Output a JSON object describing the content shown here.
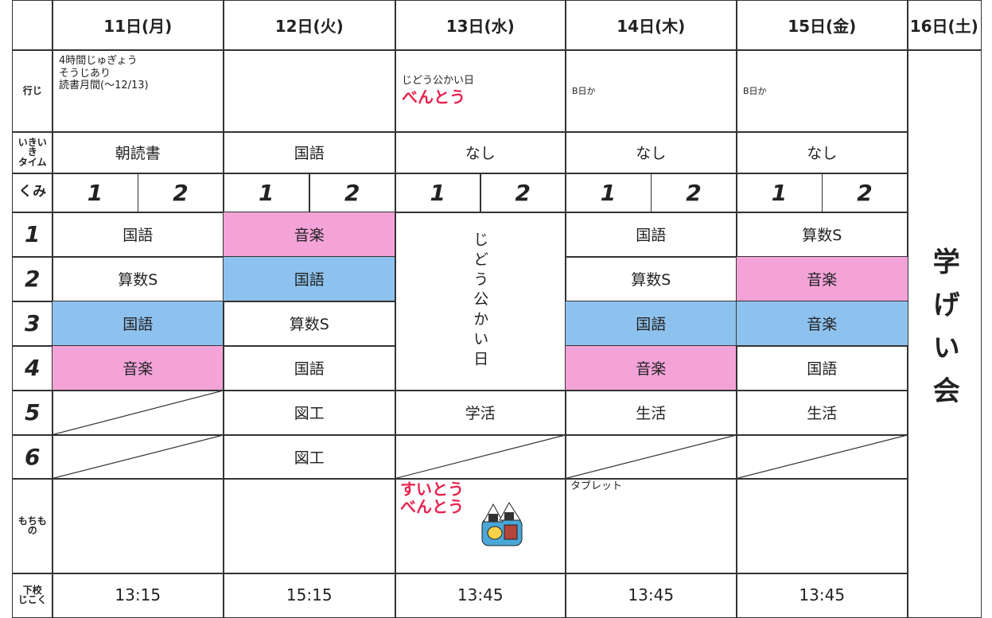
{
  "header": {
    "days": [
      "11日(月)",
      "12日(火)",
      "13日(水)",
      "14日(木)",
      "15日(金)",
      "16日(土)"
    ]
  },
  "row_labels": {
    "events": "行じ",
    "ikiiki": [
      "いきい",
      "き",
      "タイム"
    ],
    "class": "くみ",
    "periods": [
      "1",
      "2",
      "3",
      "4",
      "5",
      "6"
    ],
    "belongings": [
      "もちも",
      "の"
    ],
    "dismissal": [
      "下校",
      "じこく"
    ]
  },
  "class_labels": [
    "1",
    "2"
  ],
  "events": [
    {
      "lines": [
        "4時間じゅぎょう",
        "そうじあり",
        "読書月間(〜12/13)"
      ]
    },
    null,
    {
      "lines": [
        "じどう公かい日"
      ],
      "red": "べんとう"
    },
    {
      "lines": [
        "B日か"
      ]
    },
    {
      "lines": [
        "B日か"
      ]
    }
  ],
  "ikiiki": [
    "朝読書",
    "国語",
    "なし",
    "なし",
    "なし"
  ],
  "schedule": [
    [
      {
        "text": "国語"
      },
      {
        "text": "算数S"
      },
      {
        "text": "国語",
        "color": "#8ec2ee"
      },
      {
        "text": "音楽",
        "color": "#f3a3d8"
      },
      null,
      null
    ],
    [
      {
        "text": "音楽",
        "color": "#f3a3d8"
      },
      {
        "text": "国語",
        "color": "#8ec2ee"
      },
      {
        "text": "算数S"
      },
      {
        "text": "国語"
      },
      {
        "text": "図工"
      },
      {
        "text": "図工"
      }
    ],
    [
      {
        "text": "じどう公かい日",
        "span": 4,
        "vertical": true
      },
      {
        "text": "学活"
      },
      null
    ],
    [
      {
        "text": "国語"
      },
      {
        "text": "算数S"
      },
      {
        "text": "国語",
        "color": "#8ec2ee"
      },
      {
        "text": "音楽",
        "color": "#f3a3d8"
      },
      {
        "text": "生活"
      },
      null
    ],
    [
      {
        "text": "算数S"
      },
      {
        "text": "音楽",
        "color": "#f3a3d8"
      },
      {
        "text": "音楽",
        "color": "#8ec2ee"
      },
      {
        "text": "国語"
      },
      {
        "text": "生活"
      },
      null
    ]
  ],
  "saturday": "学げい会",
  "belongings": [
    null,
    null,
    {
      "red": [
        "すいとう",
        "べんとう"
      ]
    },
    {
      "lines": [
        "タブレット"
      ]
    },
    null
  ],
  "dismissal": [
    "13:15",
    "15:15",
    "13:45",
    "13:45",
    "13:45"
  ]
}
